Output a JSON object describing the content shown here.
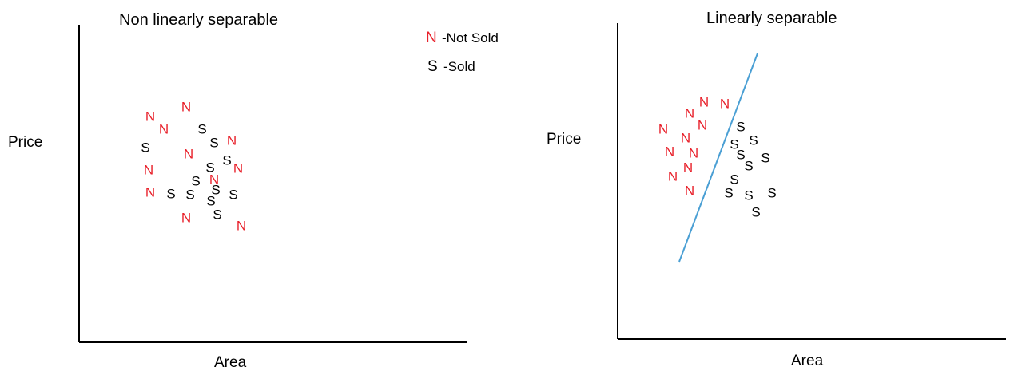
{
  "left_panel": {
    "title": "Non linearly separable",
    "ylabel": "Price",
    "xlabel": "Area"
  },
  "right_panel": {
    "title": "Linearly separable",
    "ylabel": "Price",
    "xlabel": "Area"
  },
  "legend": {
    "not_sold": {
      "symbol": "N",
      "label": "-Not Sold",
      "color": "#e8212b"
    },
    "sold": {
      "symbol": "S",
      "label": "-Sold",
      "color": "#000000"
    }
  },
  "colors": {
    "axis": "#000000",
    "separator_line": "#4a9fd4"
  }
}
